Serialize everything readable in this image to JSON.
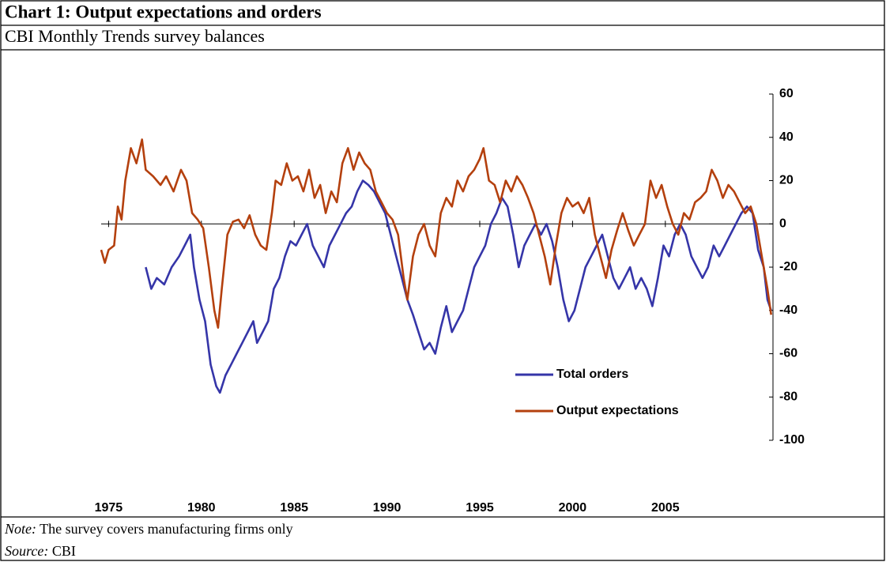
{
  "chart_data": {
    "type": "line",
    "title": "Chart 1: Output expectations and orders",
    "subtitle": "CBI Monthly Trends survey balances",
    "xlim": [
      1974.6,
      2010.8
    ],
    "xticks": [
      1975,
      1980,
      1985,
      1990,
      1995,
      2000,
      2005
    ],
    "ylim": [
      -100,
      60
    ],
    "yticks": [
      60,
      40,
      20,
      0,
      -20,
      -40,
      -60,
      -80,
      -100
    ],
    "yaxis_side": "right",
    "grid": false,
    "series": [
      {
        "name": "Total orders",
        "color": "#3535a8",
        "x": [
          1977.0,
          1977.3,
          1977.6,
          1978.0,
          1978.4,
          1978.8,
          1979.1,
          1979.4,
          1979.6,
          1979.9,
          1980.2,
          1980.5,
          1980.8,
          1981.0,
          1981.3,
          1981.6,
          1981.9,
          1982.2,
          1982.5,
          1982.8,
          1983.0,
          1983.3,
          1983.6,
          1983.9,
          1984.2,
          1984.5,
          1984.8,
          1985.1,
          1985.4,
          1985.7,
          1986.0,
          1986.3,
          1986.6,
          1986.9,
          1987.2,
          1987.5,
          1987.8,
          1988.1,
          1988.4,
          1988.7,
          1989.0,
          1989.3,
          1989.6,
          1989.9,
          1990.2,
          1990.5,
          1990.8,
          1991.1,
          1991.4,
          1991.7,
          1992.0,
          1992.3,
          1992.6,
          1992.9,
          1993.2,
          1993.5,
          1993.8,
          1994.1,
          1994.4,
          1994.7,
          1995.0,
          1995.3,
          1995.6,
          1995.9,
          1996.2,
          1996.5,
          1996.8,
          1997.1,
          1997.4,
          1997.7,
          1998.0,
          1998.3,
          1998.6,
          1998.9,
          1999.2,
          1999.5,
          1999.8,
          2000.1,
          2000.4,
          2000.7,
          2001.0,
          2001.3,
          2001.6,
          2001.9,
          2002.2,
          2002.5,
          2002.8,
          2003.1,
          2003.4,
          2003.7,
          2004.0,
          2004.3,
          2004.6,
          2004.9,
          2005.2,
          2005.5,
          2005.8,
          2006.1,
          2006.4,
          2006.7,
          2007.0,
          2007.3,
          2007.6,
          2007.9,
          2008.2,
          2008.5,
          2008.8,
          2009.1,
          2009.4,
          2009.7,
          2010.0,
          2010.3,
          2010.5,
          2010.7
        ],
        "values": [
          -20,
          -30,
          -25,
          -28,
          -20,
          -15,
          -10,
          -5,
          -20,
          -35,
          -45,
          -65,
          -75,
          -78,
          -70,
          -65,
          -60,
          -55,
          -50,
          -45,
          -55,
          -50,
          -45,
          -30,
          -25,
          -15,
          -8,
          -10,
          -5,
          0,
          -10,
          -15,
          -20,
          -10,
          -5,
          0,
          5,
          8,
          15,
          20,
          18,
          15,
          10,
          5,
          -5,
          -15,
          -25,
          -35,
          -42,
          -50,
          -58,
          -55,
          -60,
          -48,
          -38,
          -50,
          -45,
          -40,
          -30,
          -20,
          -15,
          -10,
          0,
          5,
          12,
          8,
          -5,
          -20,
          -10,
          -5,
          0,
          -5,
          0,
          -8,
          -20,
          -35,
          -45,
          -40,
          -30,
          -20,
          -15,
          -10,
          -5,
          -15,
          -25,
          -30,
          -25,
          -20,
          -30,
          -25,
          -30,
          -38,
          -25,
          -10,
          -15,
          -5,
          0,
          -5,
          -15,
          -20,
          -25,
          -20,
          -10,
          -15,
          -10,
          -5,
          0,
          5,
          8,
          5,
          -12,
          -20,
          -35,
          -40
        ]
      },
      {
        "name": "Output expectations",
        "color": "#b4400e",
        "x": [
          1974.6,
          1974.8,
          1975.0,
          1975.3,
          1975.5,
          1975.7,
          1975.9,
          1976.2,
          1976.5,
          1976.8,
          1977.0,
          1977.4,
          1977.8,
          1978.1,
          1978.5,
          1978.9,
          1979.2,
          1979.5,
          1979.8,
          1980.1,
          1980.4,
          1980.7,
          1980.9,
          1981.1,
          1981.4,
          1981.7,
          1982.0,
          1982.3,
          1982.6,
          1982.9,
          1983.2,
          1983.5,
          1983.8,
          1984.0,
          1984.3,
          1984.6,
          1984.9,
          1985.2,
          1985.5,
          1985.8,
          1986.1,
          1986.4,
          1986.7,
          1987.0,
          1987.3,
          1987.6,
          1987.9,
          1988.2,
          1988.5,
          1988.8,
          1989.1,
          1989.4,
          1989.7,
          1990.0,
          1990.3,
          1990.6,
          1990.9,
          1991.1,
          1991.4,
          1991.7,
          1992.0,
          1992.3,
          1992.6,
          1992.9,
          1993.2,
          1993.5,
          1993.8,
          1994.1,
          1994.4,
          1994.7,
          1995.0,
          1995.2,
          1995.5,
          1995.8,
          1996.1,
          1996.4,
          1996.7,
          1997.0,
          1997.3,
          1997.6,
          1997.9,
          1998.2,
          1998.5,
          1998.8,
          1999.1,
          1999.4,
          1999.7,
          2000.0,
          2000.3,
          2000.6,
          2000.9,
          2001.2,
          2001.5,
          2001.8,
          2002.1,
          2002.4,
          2002.7,
          2003.0,
          2003.3,
          2003.6,
          2003.9,
          2004.2,
          2004.5,
          2004.8,
          2005.1,
          2005.4,
          2005.7,
          2006.0,
          2006.3,
          2006.6,
          2006.9,
          2007.2,
          2007.5,
          2007.8,
          2008.1,
          2008.4,
          2008.7,
          2009.0,
          2009.3,
          2009.6,
          2009.9,
          2010.2,
          2010.5,
          2010.7
        ],
        "values": [
          -12,
          -18,
          -12,
          -10,
          8,
          2,
          20,
          35,
          28,
          39,
          25,
          22,
          18,
          22,
          15,
          25,
          20,
          5,
          2,
          -2,
          -20,
          -40,
          -48,
          -30,
          -5,
          1,
          2,
          -2,
          4,
          -5,
          -10,
          -12,
          5,
          20,
          18,
          28,
          20,
          22,
          15,
          25,
          12,
          18,
          5,
          15,
          10,
          28,
          35,
          25,
          33,
          28,
          25,
          15,
          10,
          5,
          2,
          -5,
          -25,
          -35,
          -15,
          -5,
          0,
          -10,
          -15,
          5,
          12,
          8,
          20,
          15,
          22,
          25,
          30,
          35,
          20,
          18,
          10,
          20,
          15,
          22,
          18,
          12,
          5,
          -5,
          -15,
          -28,
          -10,
          5,
          12,
          8,
          10,
          5,
          12,
          -5,
          -15,
          -25,
          -12,
          -3,
          5,
          -3,
          -10,
          -5,
          0,
          20,
          12,
          18,
          8,
          0,
          -5,
          5,
          2,
          10,
          12,
          15,
          25,
          20,
          12,
          18,
          15,
          10,
          5,
          8,
          0,
          -15,
          -30,
          -42
        ]
      }
    ]
  },
  "note": {
    "label": "Note:",
    "text": " The survey covers manufacturing firms only"
  },
  "source": {
    "label": "Source:",
    "text": " CBI"
  }
}
